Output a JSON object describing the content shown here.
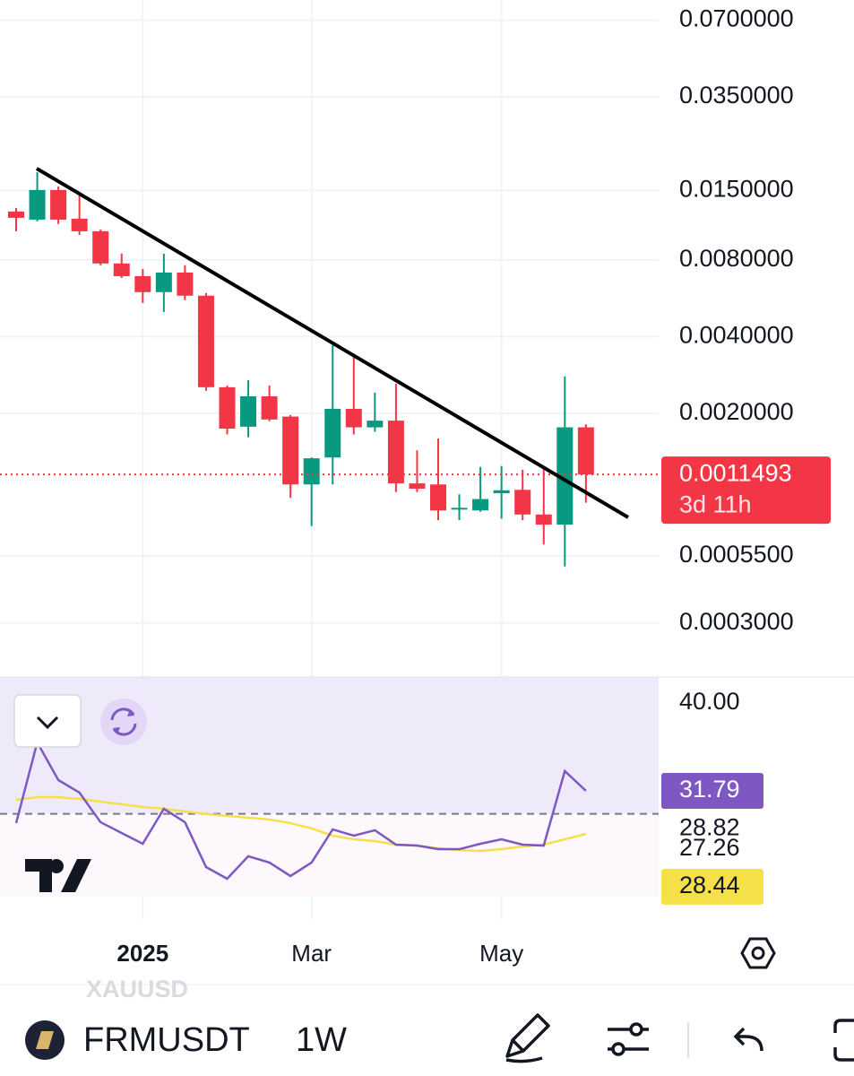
{
  "chart_data": [
    {
      "type": "candlestick",
      "log_scale": true,
      "grid": true,
      "up_color": "#089981",
      "down_color": "#f23645",
      "categories": [
        null,
        null,
        null,
        null,
        null,
        null,
        "2025",
        null,
        null,
        null,
        null,
        null,
        null,
        null,
        "Mar",
        null,
        null,
        null,
        null,
        null,
        null,
        null,
        null,
        "May",
        null,
        null,
        null,
        null
      ],
      "open": [
        0.0124,
        0.01152,
        0.01506,
        0.01162,
        0.01037,
        0.00775,
        0.00691,
        0.00598,
        0.00714,
        0.00579,
        0.00253,
        0.00177,
        0.00233,
        0.00194,
        0.00105,
        0.00134,
        0.00208,
        0.00176,
        0.00187,
        0.00106,
        0.00105,
        0.00084,
        0.00083,
        0.00097,
        0.001,
        0.0008,
        0.00073,
        0.00176
      ],
      "high": [
        0.01281,
        0.01771,
        0.01556,
        0.0147,
        0.01054,
        0.00847,
        0.00738,
        0.00847,
        0.00762,
        0.00593,
        0.00257,
        0.0027,
        0.00257,
        0.00197,
        0.00134,
        0.0037,
        0.00339,
        0.00241,
        0.00261,
        0.00143,
        0.00159,
        0.00096,
        0.00123,
        0.00124,
        0.0012,
        0.00121,
        0.00279,
        0.00181
      ],
      "low": [
        0.01037,
        0.01134,
        0.01107,
        0.01004,
        0.00762,
        0.0068,
        0.00542,
        0.005,
        0.00556,
        0.00245,
        0.00165,
        0.00161,
        0.00186,
        0.00093,
        0.00072,
        0.00105,
        0.00165,
        0.00169,
        0.00098,
        0.00098,
        0.00076,
        0.00076,
        0.00082,
        0.00077,
        0.00076,
        0.00061,
        0.0005,
        0.00089
      ],
      "close": [
        0.01171,
        0.01506,
        0.01152,
        0.01037,
        0.00775,
        0.00691,
        0.00598,
        0.00714,
        0.00579,
        0.00253,
        0.00174,
        0.00233,
        0.00189,
        0.00105,
        0.00133,
        0.00208,
        0.00176,
        0.00187,
        0.00106,
        0.00101,
        0.00083,
        0.00085,
        0.00092,
        0.000996,
        0.0008,
        0.00073,
        0.00176,
        0.0011493
      ],
      "ylim": [
        0.000184,
        0.084
      ],
      "yticks": [
        {
          "value": 0.07,
          "label": "0.0700000"
        },
        {
          "value": 0.035,
          "label": "0.0350000"
        },
        {
          "value": 0.015,
          "label": "0.0150000"
        },
        {
          "value": 0.008,
          "label": "0.0080000"
        },
        {
          "value": 0.004,
          "label": "0.0040000"
        },
        {
          "value": 0.002,
          "label": "0.0020000"
        },
        {
          "value": 0.00055,
          "label": "0.0005500"
        },
        {
          "value": 0.0003,
          "label": "0.0003000"
        }
      ],
      "countdown": "3d 11h"
    },
    {
      "type": "line",
      "level": 30,
      "series": [
        {
          "color": "#7e57c2",
          "values": [
            29.28,
            35.56,
            32.63,
            31.65,
            29.35,
            28.51,
            27.67,
            30.39,
            29.35,
            25.86,
            24.95,
            26.7,
            26.21,
            25.16,
            26.21,
            28.79,
            28.3,
            28.72,
            27.6,
            27.53,
            27.25,
            27.25,
            27.67,
            28.02,
            27.6,
            27.53,
            33.33,
            31.79
          ]
        },
        {
          "color": "#f5e04a",
          "values": [
            31.09,
            31.3,
            31.3,
            31.16,
            30.95,
            30.74,
            30.53,
            30.39,
            30.18,
            29.98,
            29.84,
            29.7,
            29.56,
            29.28,
            28.86,
            28.3,
            28.02,
            27.88,
            27.6,
            27.53,
            27.32,
            27.18,
            27.11,
            27.25,
            27.46,
            27.6,
            28.02,
            28.44
          ]
        }
      ],
      "ylim": [
        21.81,
        40.65
      ],
      "yticks": [
        {
          "value": 40,
          "label": "40.00"
        },
        28.82,
        27.26
      ]
    }
  ],
  "toolbar": {
    "symbol": "FRMUSDT",
    "interval": "1W",
    "watermark": "XAUUSD"
  }
}
